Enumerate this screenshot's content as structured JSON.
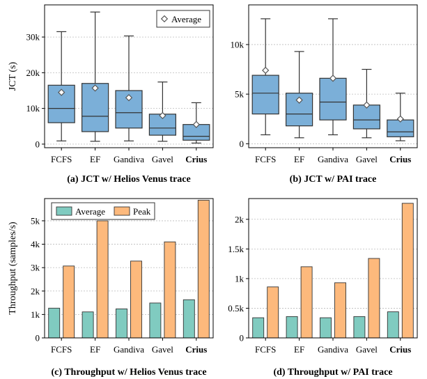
{
  "colors": {
    "box": "#7bafd8",
    "average": "#80cbc0",
    "peak": "#fdb97c",
    "grid": "#bbbbbb",
    "stroke": "#333333"
  },
  "chart_data": [
    {
      "type": "box",
      "caption": "(a) JCT w/ Helios Venus trace",
      "ylabel": "JCT (s)",
      "ylim": [
        -1000,
        39000
      ],
      "yticks": [
        0,
        10000,
        20000,
        30000
      ],
      "ytick_labels": [
        "0",
        "10k",
        "20k",
        "30k"
      ],
      "categories": [
        "FCFS",
        "EF",
        "Gandiva",
        "Gavel",
        "Crius"
      ],
      "bold_category": "Crius",
      "legend": [
        "Average"
      ],
      "legend_position": "top-right",
      "grid": true,
      "boxes": [
        {
          "whislo": 900,
          "q1": 6000,
          "med": 10000,
          "q3": 16500,
          "whishi": 31500,
          "mean": 14500
        },
        {
          "whislo": 800,
          "q1": 3500,
          "med": 7800,
          "q3": 17000,
          "whishi": 37000,
          "mean": 15700
        },
        {
          "whislo": 900,
          "q1": 4500,
          "med": 8800,
          "q3": 15000,
          "whishi": 30300,
          "mean": 13000
        },
        {
          "whislo": 800,
          "q1": 2500,
          "med": 4500,
          "q3": 8400,
          "whishi": 17400,
          "mean": 8000
        },
        {
          "whislo": 300,
          "q1": 1100,
          "med": 2200,
          "q3": 5500,
          "whishi": 11600,
          "mean": 5500
        }
      ]
    },
    {
      "type": "box",
      "caption": "(b) JCT w/ PAI trace",
      "ylabel": "",
      "ylim": [
        -400,
        14000
      ],
      "yticks": [
        0,
        5000,
        10000
      ],
      "ytick_labels": [
        "0",
        "5k",
        "10k"
      ],
      "categories": [
        "FCFS",
        "EF",
        "Gandiva",
        "Gavel",
        "Crius"
      ],
      "bold_category": "Crius",
      "grid": true,
      "boxes": [
        {
          "whislo": 900,
          "q1": 3000,
          "med": 5100,
          "q3": 6900,
          "whishi": 12600,
          "mean": 7400
        },
        {
          "whislo": 600,
          "q1": 1800,
          "med": 3000,
          "q3": 5100,
          "whishi": 9300,
          "mean": 4400
        },
        {
          "whislo": 900,
          "q1": 2400,
          "med": 4200,
          "q3": 6600,
          "whishi": 12600,
          "mean": 6600
        },
        {
          "whislo": 600,
          "q1": 1500,
          "med": 2400,
          "q3": 3900,
          "whishi": 7500,
          "mean": 3900
        },
        {
          "whislo": 300,
          "q1": 700,
          "med": 1200,
          "q3": 2400,
          "whishi": 5100,
          "mean": 2500
        }
      ]
    },
    {
      "type": "bar",
      "caption": "(c) Throughput w/ Helios Venus trace",
      "ylabel": "Throughput (samples/s)",
      "ylim": [
        0,
        5950
      ],
      "yticks": [
        0,
        1000,
        2000,
        3000,
        4000,
        5000
      ],
      "ytick_labels": [
        "0",
        "1k",
        "2k",
        "3k",
        "4k",
        "5k"
      ],
      "categories": [
        "FCFS",
        "EF",
        "Gandiva",
        "Gavel",
        "Crius"
      ],
      "bold_category": "Crius",
      "legend_position": "top-left",
      "grid": true,
      "series": [
        {
          "name": "Average",
          "values": [
            1270,
            1110,
            1240,
            1490,
            1630
          ]
        },
        {
          "name": "Peak",
          "values": [
            3070,
            5000,
            3280,
            4100,
            5880
          ]
        }
      ]
    },
    {
      "type": "bar",
      "caption": "(d) Throughput w/ PAI trace",
      "ylabel": "",
      "ylim": [
        0,
        2350
      ],
      "yticks": [
        0,
        500,
        1000,
        1500,
        2000
      ],
      "ytick_labels": [
        "0",
        "0.5k",
        "1k",
        "1.5k",
        "2k"
      ],
      "categories": [
        "FCFS",
        "EF",
        "Gandiva",
        "Gavel",
        "Crius"
      ],
      "bold_category": "Crius",
      "grid": true,
      "series": [
        {
          "name": "Average",
          "values": [
            340,
            360,
            340,
            360,
            440
          ]
        },
        {
          "name": "Peak",
          "values": [
            860,
            1200,
            930,
            1340,
            2270
          ]
        }
      ]
    }
  ]
}
